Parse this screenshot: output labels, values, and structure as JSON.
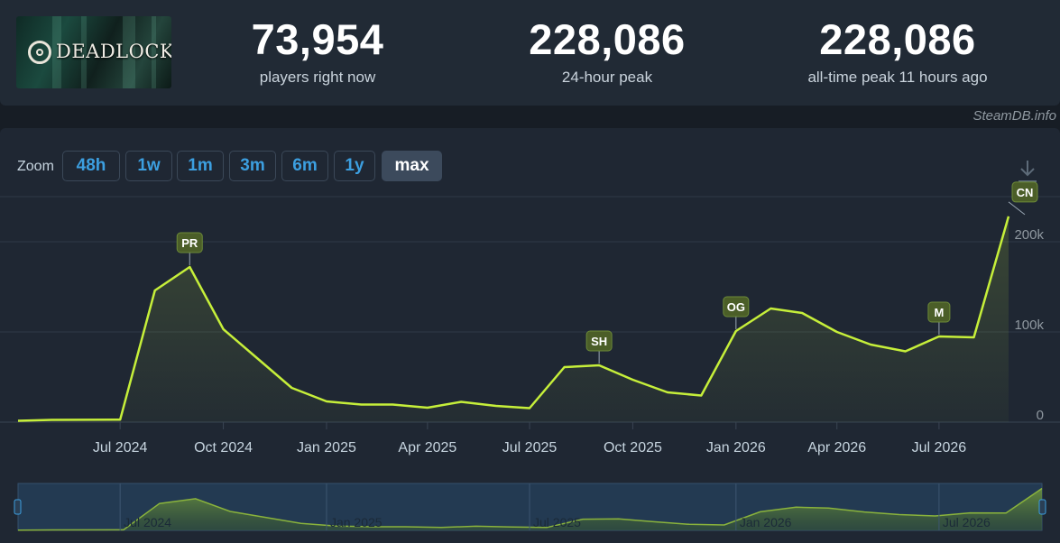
{
  "app": {
    "logo_text": "DEADLOCK",
    "credit": "SteamDB.info"
  },
  "stats": [
    {
      "value": "73,954",
      "label": "players right now"
    },
    {
      "value": "228,086",
      "label": "24-hour peak"
    },
    {
      "value": "228,086",
      "label": "all-time peak 11 hours ago"
    }
  ],
  "toolbar": {
    "zoom_label": "Zoom",
    "buttons": [
      "48h",
      "1w",
      "1m",
      "3m",
      "6m",
      "1y",
      "max"
    ],
    "active": "max",
    "download_icon": "download-icon"
  },
  "colors": {
    "line": "#c6ef3a",
    "accent": "#3c9fe0",
    "flag_bg": "#4b5e28",
    "navigator_bg": "#233a52"
  },
  "chart_data": {
    "type": "line",
    "title": "",
    "xlabel": "",
    "ylabel": "",
    "ylim": [
      0,
      250000
    ],
    "yticks": [
      {
        "value": 0,
        "label": "0"
      },
      {
        "value": 100000,
        "label": "100k"
      },
      {
        "value": 200000,
        "label": "200k"
      }
    ],
    "xticks": [
      {
        "date": "2024-07-01",
        "label": "Jul 2024"
      },
      {
        "date": "2024-10-01",
        "label": "Oct 2024"
      },
      {
        "date": "2025-01-01",
        "label": "Jan 2025"
      },
      {
        "date": "2025-04-01",
        "label": "Apr 2025"
      },
      {
        "date": "2025-07-01",
        "label": "Jul 2025"
      },
      {
        "date": "2025-10-01",
        "label": "Oct 2025"
      },
      {
        "date": "2026-01-01",
        "label": "Jan 2026"
      },
      {
        "date": "2026-04-01",
        "label": "Apr 2026"
      },
      {
        "date": "2026-07-01",
        "label": "Jul 2026"
      }
    ],
    "series": [
      {
        "values": [
          [
            "2024-04-01",
            1500
          ],
          [
            "2024-05-01",
            2500
          ],
          [
            "2024-07-01",
            2800
          ],
          [
            "2024-08-01",
            146000
          ],
          [
            "2024-09-01",
            172000
          ],
          [
            "2024-10-01",
            103000
          ],
          [
            "2024-11-01",
            70000
          ],
          [
            "2024-12-01",
            38000
          ],
          [
            "2025-01-01",
            23000
          ],
          [
            "2025-02-01",
            19500
          ],
          [
            "2025-03-01",
            19500
          ],
          [
            "2025-04-01",
            16000
          ],
          [
            "2025-05-01",
            22500
          ],
          [
            "2025-06-01",
            18000
          ],
          [
            "2025-07-01",
            15500
          ],
          [
            "2025-08-01",
            61000
          ],
          [
            "2025-09-01",
            63000
          ],
          [
            "2025-10-01",
            47000
          ],
          [
            "2025-11-01",
            33000
          ],
          [
            "2025-12-01",
            29500
          ],
          [
            "2026-01-01",
            101000
          ],
          [
            "2026-02-01",
            126000
          ],
          [
            "2026-03-01",
            121000
          ],
          [
            "2026-04-01",
            100000
          ],
          [
            "2026-05-01",
            86000
          ],
          [
            "2026-06-01",
            78500
          ],
          [
            "2026-07-01",
            95000
          ],
          [
            "2026-08-01",
            94000
          ],
          [
            "2026-09-01",
            228086
          ]
        ]
      }
    ],
    "flags": [
      {
        "label": "PR",
        "date": "2024-09-01"
      },
      {
        "label": "SH",
        "date": "2025-09-01"
      },
      {
        "label": "OG",
        "date": "2026-01-01"
      },
      {
        "label": "M",
        "date": "2026-07-01"
      },
      {
        "label": "CN",
        "date": "2026-09-01"
      }
    ],
    "navigator": {
      "xticks": [
        "Jul 2024",
        "Jan 2025",
        "Jul 2025",
        "Jan 2026",
        "Jul 2026"
      ]
    },
    "grid": true,
    "legend": "none"
  }
}
